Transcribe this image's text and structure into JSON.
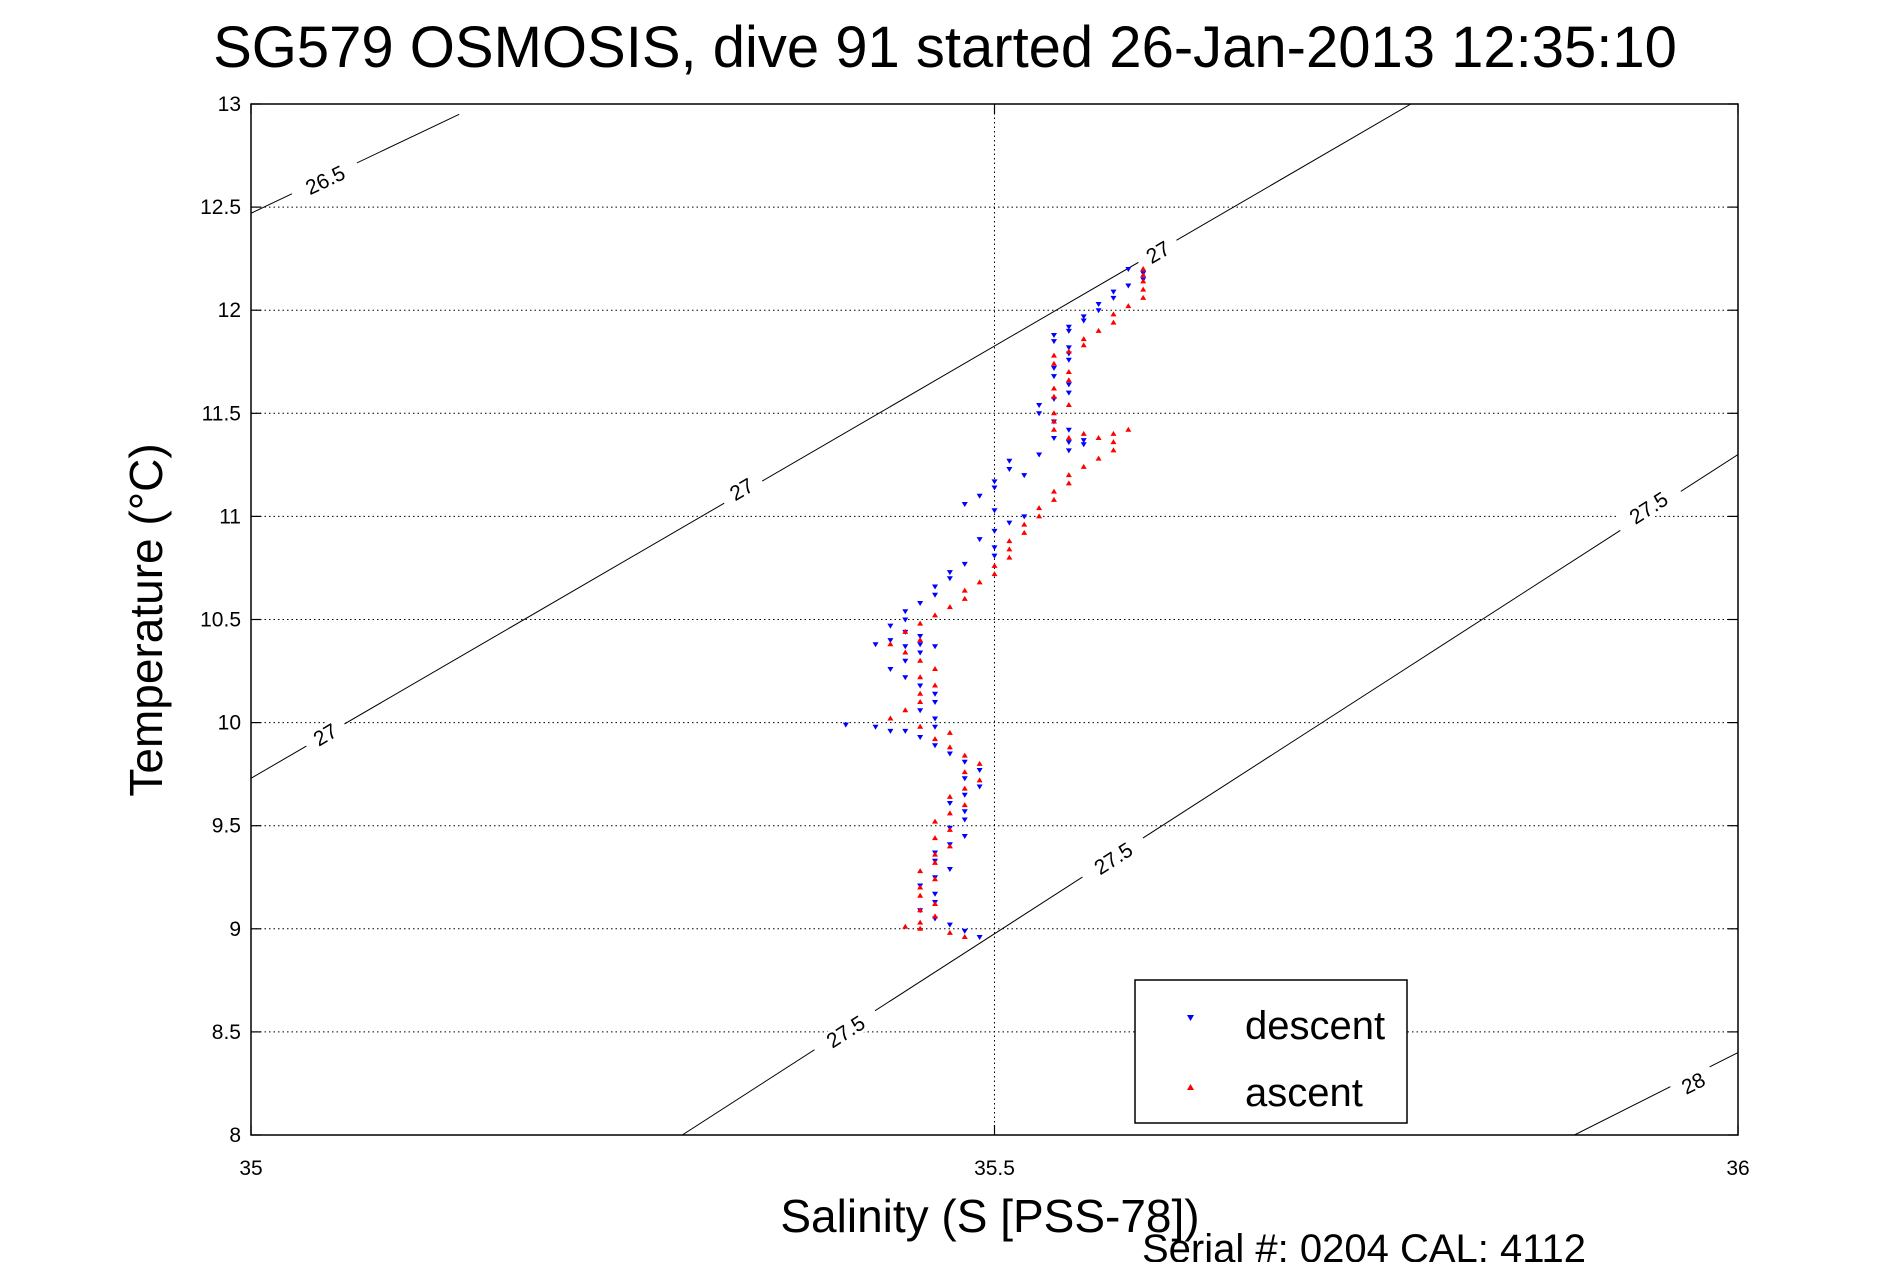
{
  "chart_data": {
    "type": "scatter",
    "title": "SG579 OSMOSIS, dive 91 started 26-Jan-2013 12:35:10",
    "xlabel": "Salinity (S [PSS-78])",
    "ylabel": "Temperature (°C)",
    "xlim": [
      35,
      36
    ],
    "ylim": [
      8,
      13
    ],
    "x_ticks": [
      "35",
      "35.5",
      "36"
    ],
    "y_ticks": [
      "8",
      "8.5",
      "9",
      "9.5",
      "10",
      "10.5",
      "11",
      "11.5",
      "12",
      "12.5",
      "13"
    ],
    "grid": true,
    "legend_position": "bottom-right",
    "contours": [
      {
        "label": "26.5",
        "points": [
          [
            35.0,
            12.47
          ],
          [
            35.14,
            12.95
          ]
        ],
        "label_at": [
          35.05,
          12.63
        ]
      },
      {
        "label": "27",
        "points": [
          [
            35.0,
            9.73
          ],
          [
            35.78,
            13.0
          ]
        ],
        "label_at_list": [
          [
            35.05,
            9.94
          ],
          [
            35.33,
            11.13
          ],
          [
            35.61,
            12.28
          ]
        ]
      },
      {
        "label": "27.5",
        "points": [
          [
            35.29,
            8.0
          ],
          [
            36.0,
            11.3
          ]
        ],
        "label_at_list": [
          [
            35.4,
            8.5
          ],
          [
            35.58,
            9.34
          ],
          [
            35.94,
            11.04
          ]
        ]
      },
      {
        "label": "28",
        "points": [
          [
            35.89,
            8.0
          ],
          [
            36.0,
            8.4
          ]
        ],
        "label_at": [
          35.97,
          8.25
        ]
      }
    ],
    "series": [
      {
        "name": "descent",
        "color": "#0000ff",
        "marker": "triangle-down",
        "points": [
          [
            35.59,
            12.2
          ],
          [
            35.6,
            12.18
          ],
          [
            35.6,
            12.15
          ],
          [
            35.59,
            12.12
          ],
          [
            35.58,
            12.09
          ],
          [
            35.58,
            12.06
          ],
          [
            35.57,
            12.03
          ],
          [
            35.57,
            12.0
          ],
          [
            35.56,
            11.97
          ],
          [
            35.56,
            11.95
          ],
          [
            35.55,
            11.92
          ],
          [
            35.55,
            11.9
          ],
          [
            35.54,
            11.88
          ],
          [
            35.54,
            11.85
          ],
          [
            35.55,
            11.82
          ],
          [
            35.55,
            11.79
          ],
          [
            35.55,
            11.76
          ],
          [
            35.54,
            11.72
          ],
          [
            35.54,
            11.68
          ],
          [
            35.55,
            11.64
          ],
          [
            35.55,
            11.6
          ],
          [
            35.54,
            11.57
          ],
          [
            35.53,
            11.54
          ],
          [
            35.53,
            11.5
          ],
          [
            35.54,
            11.46
          ],
          [
            35.55,
            11.42
          ],
          [
            35.54,
            11.38
          ],
          [
            35.55,
            11.36
          ],
          [
            35.56,
            11.37
          ],
          [
            35.56,
            11.35
          ],
          [
            35.55,
            11.32
          ],
          [
            35.53,
            11.3
          ],
          [
            35.51,
            11.27
          ],
          [
            35.51,
            11.23
          ],
          [
            35.52,
            11.2
          ],
          [
            35.5,
            11.17
          ],
          [
            35.5,
            11.14
          ],
          [
            35.49,
            11.1
          ],
          [
            35.48,
            11.06
          ],
          [
            35.5,
            11.03
          ],
          [
            35.52,
            11.0
          ],
          [
            35.51,
            10.97
          ],
          [
            35.5,
            10.93
          ],
          [
            35.49,
            10.89
          ],
          [
            35.5,
            10.85
          ],
          [
            35.5,
            10.81
          ],
          [
            35.48,
            10.77
          ],
          [
            35.47,
            10.73
          ],
          [
            35.47,
            10.7
          ],
          [
            35.46,
            10.66
          ],
          [
            35.46,
            10.62
          ],
          [
            35.45,
            10.58
          ],
          [
            35.44,
            10.54
          ],
          [
            35.44,
            10.5
          ],
          [
            35.43,
            10.47
          ],
          [
            35.44,
            10.44
          ],
          [
            35.45,
            10.42
          ],
          [
            35.43,
            10.4
          ],
          [
            35.42,
            10.38
          ],
          [
            35.44,
            10.37
          ],
          [
            35.45,
            10.38
          ],
          [
            35.46,
            10.37
          ],
          [
            35.45,
            10.34
          ],
          [
            35.44,
            10.3
          ],
          [
            35.43,
            10.26
          ],
          [
            35.44,
            10.22
          ],
          [
            35.45,
            10.18
          ],
          [
            35.46,
            10.14
          ],
          [
            35.46,
            10.1
          ],
          [
            35.45,
            10.06
          ],
          [
            35.46,
            10.02
          ],
          [
            35.46,
            9.98
          ],
          [
            35.44,
            9.96
          ],
          [
            35.42,
            9.98
          ],
          [
            35.4,
            9.99
          ],
          [
            35.43,
            9.96
          ],
          [
            35.45,
            9.93
          ],
          [
            35.46,
            9.89
          ],
          [
            35.47,
            9.85
          ],
          [
            35.48,
            9.81
          ],
          [
            35.49,
            9.77
          ],
          [
            35.48,
            9.73
          ],
          [
            35.49,
            9.69
          ],
          [
            35.48,
            9.65
          ],
          [
            35.47,
            9.61
          ],
          [
            35.48,
            9.57
          ],
          [
            35.48,
            9.53
          ],
          [
            35.47,
            9.49
          ],
          [
            35.48,
            9.45
          ],
          [
            35.47,
            9.41
          ],
          [
            35.46,
            9.37
          ],
          [
            35.46,
            9.33
          ],
          [
            35.47,
            9.29
          ],
          [
            35.46,
            9.25
          ],
          [
            35.45,
            9.21
          ],
          [
            35.46,
            9.17
          ],
          [
            35.46,
            9.13
          ],
          [
            35.45,
            9.09
          ],
          [
            35.46,
            9.05
          ],
          [
            35.47,
            9.02
          ],
          [
            35.48,
            8.99
          ],
          [
            35.49,
            8.96
          ]
        ]
      },
      {
        "name": "ascent",
        "color": "#ff0000",
        "marker": "triangle-up",
        "points": [
          [
            35.48,
            8.96
          ],
          [
            35.47,
            8.98
          ],
          [
            35.45,
            9.0
          ],
          [
            35.44,
            9.01
          ],
          [
            35.45,
            9.03
          ],
          [
            35.46,
            9.06
          ],
          [
            35.45,
            9.09
          ],
          [
            35.46,
            9.12
          ],
          [
            35.45,
            9.16
          ],
          [
            35.45,
            9.2
          ],
          [
            35.46,
            9.24
          ],
          [
            35.45,
            9.28
          ],
          [
            35.46,
            9.32
          ],
          [
            35.46,
            9.36
          ],
          [
            35.47,
            9.4
          ],
          [
            35.46,
            9.44
          ],
          [
            35.47,
            9.48
          ],
          [
            35.46,
            9.52
          ],
          [
            35.47,
            9.56
          ],
          [
            35.48,
            9.6
          ],
          [
            35.47,
            9.64
          ],
          [
            35.48,
            9.68
          ],
          [
            35.49,
            9.72
          ],
          [
            35.48,
            9.76
          ],
          [
            35.49,
            9.8
          ],
          [
            35.48,
            9.84
          ],
          [
            35.47,
            9.88
          ],
          [
            35.46,
            9.92
          ],
          [
            35.47,
            9.95
          ],
          [
            35.45,
            9.98
          ],
          [
            35.43,
            10.02
          ],
          [
            35.44,
            10.06
          ],
          [
            35.45,
            10.1
          ],
          [
            35.45,
            10.14
          ],
          [
            35.46,
            10.18
          ],
          [
            35.45,
            10.22
          ],
          [
            35.46,
            10.26
          ],
          [
            35.45,
            10.3
          ],
          [
            35.44,
            10.34
          ],
          [
            35.43,
            10.38
          ],
          [
            35.45,
            10.4
          ],
          [
            35.44,
            10.44
          ],
          [
            35.45,
            10.48
          ],
          [
            35.46,
            10.52
          ],
          [
            35.47,
            10.56
          ],
          [
            35.48,
            10.6
          ],
          [
            35.48,
            10.64
          ],
          [
            35.49,
            10.68
          ],
          [
            35.5,
            10.72
          ],
          [
            35.5,
            10.76
          ],
          [
            35.51,
            10.8
          ],
          [
            35.51,
            10.84
          ],
          [
            35.51,
            10.88
          ],
          [
            35.52,
            10.92
          ],
          [
            35.52,
            10.96
          ],
          [
            35.53,
            11.0
          ],
          [
            35.53,
            11.04
          ],
          [
            35.54,
            11.08
          ],
          [
            35.54,
            11.12
          ],
          [
            35.55,
            11.16
          ],
          [
            35.55,
            11.2
          ],
          [
            35.56,
            11.24
          ],
          [
            35.57,
            11.28
          ],
          [
            35.58,
            11.32
          ],
          [
            35.58,
            11.36
          ],
          [
            35.57,
            11.38
          ],
          [
            35.58,
            11.4
          ],
          [
            35.59,
            11.42
          ],
          [
            35.56,
            11.4
          ],
          [
            35.55,
            11.38
          ],
          [
            35.54,
            11.42
          ],
          [
            35.54,
            11.46
          ],
          [
            35.54,
            11.5
          ],
          [
            35.55,
            11.54
          ],
          [
            35.54,
            11.58
          ],
          [
            35.54,
            11.62
          ],
          [
            35.55,
            11.66
          ],
          [
            35.55,
            11.7
          ],
          [
            35.54,
            11.74
          ],
          [
            35.54,
            11.78
          ],
          [
            35.55,
            11.8
          ],
          [
            35.56,
            11.83
          ],
          [
            35.56,
            11.86
          ],
          [
            35.57,
            11.9
          ],
          [
            35.58,
            11.94
          ],
          [
            35.58,
            11.98
          ],
          [
            35.59,
            12.02
          ],
          [
            35.6,
            12.06
          ],
          [
            35.6,
            12.1
          ],
          [
            35.6,
            12.14
          ],
          [
            35.6,
            12.17
          ],
          [
            35.6,
            12.2
          ]
        ]
      }
    ]
  },
  "footer": {
    "serial_text": "Serial #: 0204  CAL: 4112"
  }
}
